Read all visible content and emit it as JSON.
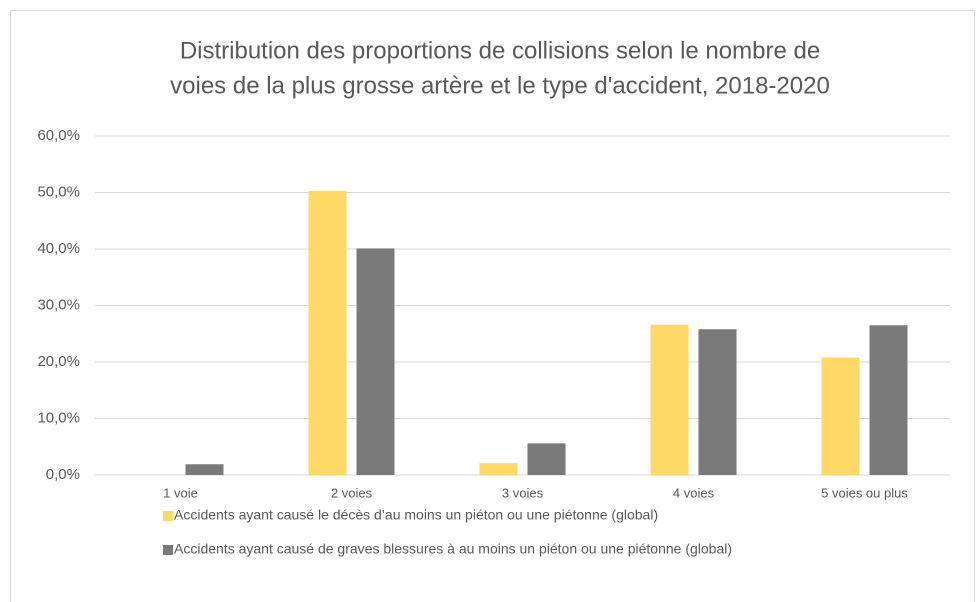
{
  "chart_data": {
    "type": "bar",
    "title": [
      "Distribution des proportions de collisions selon le nombre de",
      "voies de la plus grosse artère et le type d'accident, 2018-2020"
    ],
    "categories": [
      "1 voie",
      "2 voies",
      "3 voies",
      "4 voies",
      "5 voies ou plus"
    ],
    "series": [
      {
        "name": "Accidents ayant causé le décès d’au moins un piéton ou une piétonne (global)",
        "color": "#ffd966",
        "values": [
          0,
          50.3,
          2.1,
          26.6,
          20.8
        ]
      },
      {
        "name": "Accidents ayant causé de graves blessures à au moins un piéton ou une piétonne (global)",
        "color": "#7a7a7a",
        "values": [
          1.9,
          40.1,
          5.6,
          25.8,
          26.5
        ]
      }
    ],
    "ylim": [
      0,
      60
    ],
    "yticks": [
      {
        "value": 0,
        "label": "0,0%"
      },
      {
        "value": 10,
        "label": "10,0%"
      },
      {
        "value": 20,
        "label": "20,0%"
      },
      {
        "value": 30,
        "label": "30,0%"
      },
      {
        "value": 40,
        "label": "40,0%"
      },
      {
        "value": 50,
        "label": "50,0%"
      },
      {
        "value": 60,
        "label": "60,0%"
      }
    ],
    "grid": true,
    "legend": "bottom"
  }
}
